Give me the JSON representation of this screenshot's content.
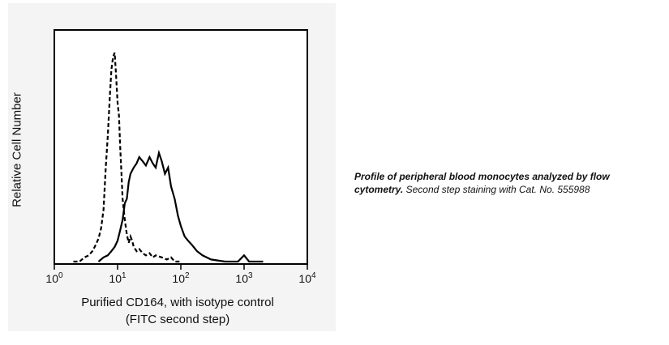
{
  "chart_data": {
    "type": "line",
    "title": "",
    "xlabel_line1": "Purified CD164, with isotype control",
    "xlabel_line2": "(FITC second step)",
    "ylabel": "Relative Cell Number",
    "x_scale": "log",
    "xlim": [
      1,
      10000
    ],
    "ylim": [
      0,
      1
    ],
    "grid": false,
    "xticks": [
      {
        "value": 1,
        "base": "10",
        "exp": "0"
      },
      {
        "value": 10,
        "base": "10",
        "exp": "1"
      },
      {
        "value": 100,
        "base": "10",
        "exp": "2"
      },
      {
        "value": 1000,
        "base": "10",
        "exp": "3"
      },
      {
        "value": 10000,
        "base": "10",
        "exp": "4"
      }
    ],
    "series": [
      {
        "style": "dashed",
        "x": [
          2.0,
          2.5,
          3.0,
          3.5,
          4.0,
          4.5,
          5.0,
          5.5,
          6.0,
          6.5,
          7.0,
          7.5,
          8.0,
          8.5,
          9.0,
          9.5,
          10.0,
          10.5,
          11.0,
          11.5,
          12.0,
          13.0,
          14.0,
          15.0,
          16.0,
          17.0,
          18.0,
          20.0,
          22.0,
          25.0,
          28.0,
          32.0,
          36.0,
          40.0,
          50.0,
          60.0,
          70.0,
          80.0,
          100.0
        ],
        "y": [
          0.0,
          0.0,
          0.02,
          0.03,
          0.05,
          0.08,
          0.11,
          0.16,
          0.25,
          0.45,
          0.6,
          0.78,
          0.92,
          0.98,
          1.0,
          0.88,
          0.76,
          0.7,
          0.55,
          0.43,
          0.3,
          0.2,
          0.13,
          0.09,
          0.12,
          0.1,
          0.07,
          0.05,
          0.06,
          0.04,
          0.03,
          0.04,
          0.02,
          0.03,
          0.02,
          0.01,
          0.02,
          0.0,
          0.0
        ]
      },
      {
        "style": "solid",
        "x": [
          5.0,
          6.0,
          7.0,
          8.0,
          9.0,
          10.0,
          11.0,
          12.0,
          13.0,
          14.0,
          15.0,
          16.0,
          18.0,
          20.0,
          22.0,
          25.0,
          28.0,
          32.0,
          36.0,
          40.0,
          45.0,
          50.0,
          56.0,
          63.0,
          70.0,
          80.0,
          90.0,
          100.0,
          115.0,
          130.0,
          150.0,
          180.0,
          220.0,
          300.0,
          500.0,
          800.0,
          1000.0,
          1200.0,
          2000.0
        ],
        "y": [
          0.0,
          0.02,
          0.03,
          0.05,
          0.07,
          0.1,
          0.15,
          0.2,
          0.28,
          0.3,
          0.38,
          0.42,
          0.45,
          0.47,
          0.5,
          0.48,
          0.46,
          0.5,
          0.47,
          0.45,
          0.52,
          0.48,
          0.42,
          0.45,
          0.36,
          0.3,
          0.22,
          0.17,
          0.12,
          0.1,
          0.08,
          0.05,
          0.03,
          0.01,
          0.0,
          0.0,
          0.03,
          0.0,
          0.0
        ]
      }
    ]
  },
  "caption": {
    "bold": "Profile of peripheral blood monocytes analyzed by flow cytometry.",
    "rest": "Second step staining with Cat. No. 555988"
  }
}
